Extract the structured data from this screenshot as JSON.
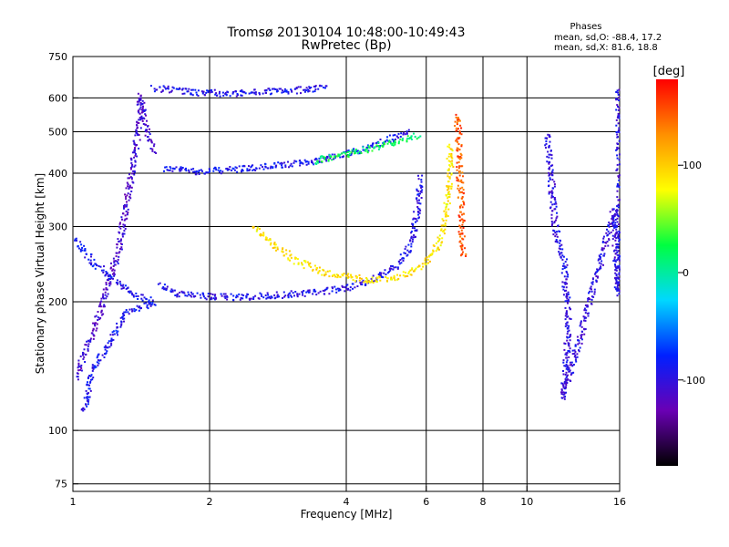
{
  "chart_data": {
    "type": "scatter",
    "title": "Tromsø 20130104 10:48:00-10:49:43",
    "subtitle": "RwPretec (Bp)",
    "xlabel": "Frequency [MHz]",
    "ylabel": "Stationary phase Virtual Height [km]",
    "xscale": "log",
    "yscale": "log",
    "xlim": [
      1,
      16
    ],
    "ylim": [
      72,
      750
    ],
    "xticks": [
      1,
      2,
      4,
      6,
      8,
      10,
      16
    ],
    "yticks": [
      75,
      100,
      200,
      300,
      400,
      500,
      600,
      750
    ],
    "grid": true,
    "stats": {
      "title": "Phases",
      "line_O": "mean, sd,O: -88.4, 17.2",
      "line_X": "mean, sd,X:  81.6, 18.8"
    },
    "colorbar": {
      "label": "[deg]",
      "range": [
        -180,
        180
      ],
      "ticks": [
        100,
        0,
        -100
      ],
      "colors": [
        "#000000",
        "#6a00b4",
        "#0020ff",
        "#00d8ff",
        "#00ff40",
        "#ffff00",
        "#ff9000",
        "#ff0000"
      ]
    },
    "traces": [
      {
        "name": "",
        "phase": -90,
        "points": [
          [
            1.58,
            412
          ],
          [
            1.7,
            410
          ],
          [
            1.9,
            405
          ],
          [
            2.1,
            408
          ],
          [
            2.4,
            412
          ],
          [
            2.8,
            418
          ],
          [
            3.2,
            425
          ],
          [
            3.6,
            435
          ],
          [
            4.0,
            447
          ],
          [
            4.4,
            460
          ],
          [
            4.8,
            475
          ],
          [
            5.2,
            490
          ],
          [
            5.5,
            505
          ]
        ]
      },
      {
        "name": "",
        "phase": 20,
        "points": [
          [
            3.4,
            428
          ],
          [
            3.8,
            440
          ],
          [
            4.2,
            452
          ],
          [
            4.7,
            465
          ],
          [
            5.3,
            480
          ],
          [
            5.8,
            495
          ]
        ]
      },
      {
        "name": "",
        "phase": -95,
        "points": [
          [
            1.55,
            220
          ],
          [
            1.7,
            210
          ],
          [
            1.9,
            207
          ],
          [
            2.2,
            206
          ],
          [
            2.6,
            207
          ],
          [
            3.0,
            209
          ],
          [
            3.5,
            212
          ],
          [
            4.0,
            217
          ],
          [
            4.5,
            225
          ],
          [
            5.0,
            238
          ],
          [
            5.4,
            260
          ],
          [
            5.6,
            290
          ],
          [
            5.75,
            340
          ],
          [
            5.8,
            395
          ]
        ]
      },
      {
        "name": "",
        "phase": 90,
        "points": [
          [
            2.5,
            300
          ],
          [
            2.8,
            270
          ],
          [
            3.1,
            250
          ],
          [
            3.5,
            237
          ],
          [
            4.0,
            230
          ],
          [
            4.5,
            226
          ],
          [
            5.0,
            228
          ],
          [
            5.5,
            236
          ],
          [
            6.0,
            250
          ],
          [
            6.3,
            270
          ],
          [
            6.55,
            310
          ],
          [
            6.7,
            360
          ],
          [
            6.75,
            420
          ],
          [
            6.72,
            470
          ]
        ]
      },
      {
        "name": "",
        "phase": -95,
        "points": [
          [
            1.5,
            635
          ],
          [
            1.7,
            628
          ],
          [
            1.9,
            620
          ],
          [
            2.1,
            618
          ],
          [
            2.4,
            620
          ],
          [
            2.8,
            625
          ],
          [
            3.2,
            630
          ],
          [
            3.6,
            640
          ]
        ]
      },
      {
        "name": "",
        "phase": -110,
        "points": [
          [
            1.0,
            130
          ],
          [
            1.05,
            150
          ],
          [
            1.1,
            170
          ],
          [
            1.15,
            195
          ],
          [
            1.2,
            225
          ],
          [
            1.25,
            260
          ],
          [
            1.3,
            330
          ],
          [
            1.35,
            420
          ],
          [
            1.4,
            540
          ],
          [
            1.4,
            610
          ],
          [
            1.45,
            500
          ],
          [
            1.5,
            450
          ]
        ]
      },
      {
        "name": "",
        "phase": -90,
        "points": [
          [
            1.0,
            285
          ],
          [
            1.1,
            250
          ],
          [
            1.2,
            230
          ],
          [
            1.35,
            210
          ],
          [
            1.5,
            200
          ],
          [
            1.3,
            190
          ],
          [
            1.2,
            160
          ],
          [
            1.1,
            140
          ],
          [
            1.05,
            110
          ]
        ]
      },
      {
        "name": "",
        "phase": 150,
        "points": [
          [
            7.0,
            550
          ],
          [
            7.2,
            255
          ]
        ]
      },
      {
        "name": "",
        "phase": -100,
        "points": [
          [
            11.0,
            500
          ],
          [
            11.5,
            300
          ],
          [
            12.0,
            250
          ],
          [
            12.3,
            180
          ],
          [
            12.0,
            120
          ],
          [
            15.5,
            330
          ],
          [
            15.8,
            210
          ],
          [
            15.9,
            640
          ]
        ]
      }
    ]
  }
}
